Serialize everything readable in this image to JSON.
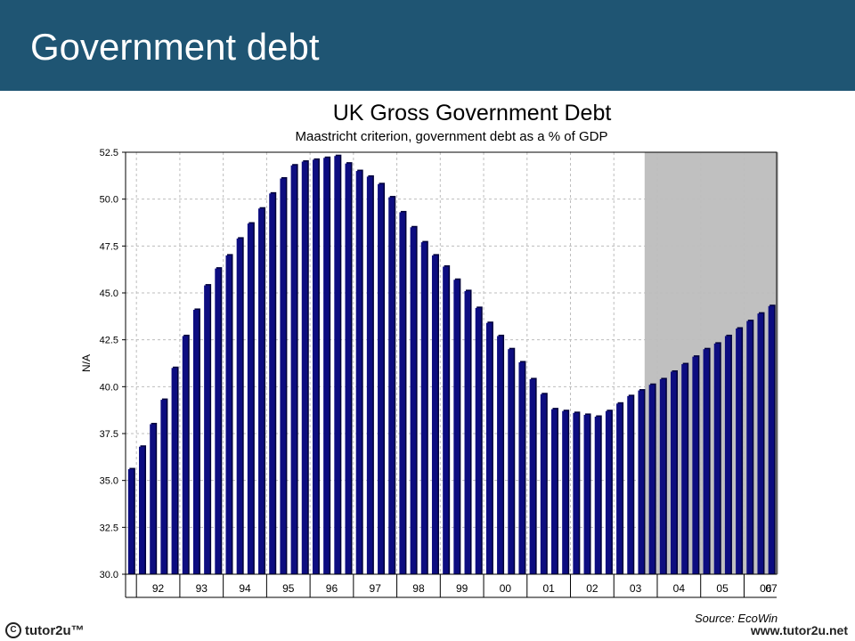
{
  "page": {
    "title": "Government debt",
    "footer_brand": "tutor2u™",
    "footer_url": "www.tutor2u.net"
  },
  "chart_data": {
    "type": "bar",
    "title": "UK Gross Government Debt",
    "subtitle": "Maastricht criterion, government debt as a % of GDP",
    "ylabel": "N/A",
    "ylim": [
      30.0,
      52.5
    ],
    "yticks": [
      "30.0",
      "32.5",
      "35.0",
      "37.5",
      "40.0",
      "42.5",
      "45.0",
      "47.5",
      "50.0",
      "52.5"
    ],
    "xticks": [
      "92",
      "93",
      "94",
      "95",
      "96",
      "97",
      "98",
      "99",
      "00",
      "01",
      "02",
      "03",
      "04",
      "05",
      "06",
      "07"
    ],
    "frequency": "quarterly",
    "start": "1991 Q4",
    "forecast_start_index": 48,
    "grid": true,
    "source": "Source: EcoWin",
    "values": [
      35.6,
      36.8,
      38.0,
      39.3,
      41.0,
      42.7,
      44.1,
      45.4,
      46.3,
      47.0,
      47.9,
      48.7,
      49.5,
      50.3,
      51.1,
      51.8,
      52.0,
      52.1,
      52.2,
      52.3,
      51.9,
      51.5,
      51.2,
      50.8,
      50.1,
      49.3,
      48.5,
      47.7,
      47.0,
      46.4,
      45.7,
      45.1,
      44.2,
      43.4,
      42.7,
      42.0,
      41.3,
      40.4,
      39.6,
      38.8,
      38.7,
      38.6,
      38.5,
      38.4,
      38.7,
      39.1,
      39.5,
      39.8,
      40.1,
      40.4,
      40.8,
      41.2,
      41.6,
      42.0,
      42.3,
      42.7,
      43.1,
      43.5,
      43.9,
      44.3
    ],
    "colors": {
      "bar": "#0d0d80",
      "bar_shadow": "#00003a",
      "forecast_shade": "#c0c0c0",
      "grid": "#bdbdbd"
    }
  }
}
